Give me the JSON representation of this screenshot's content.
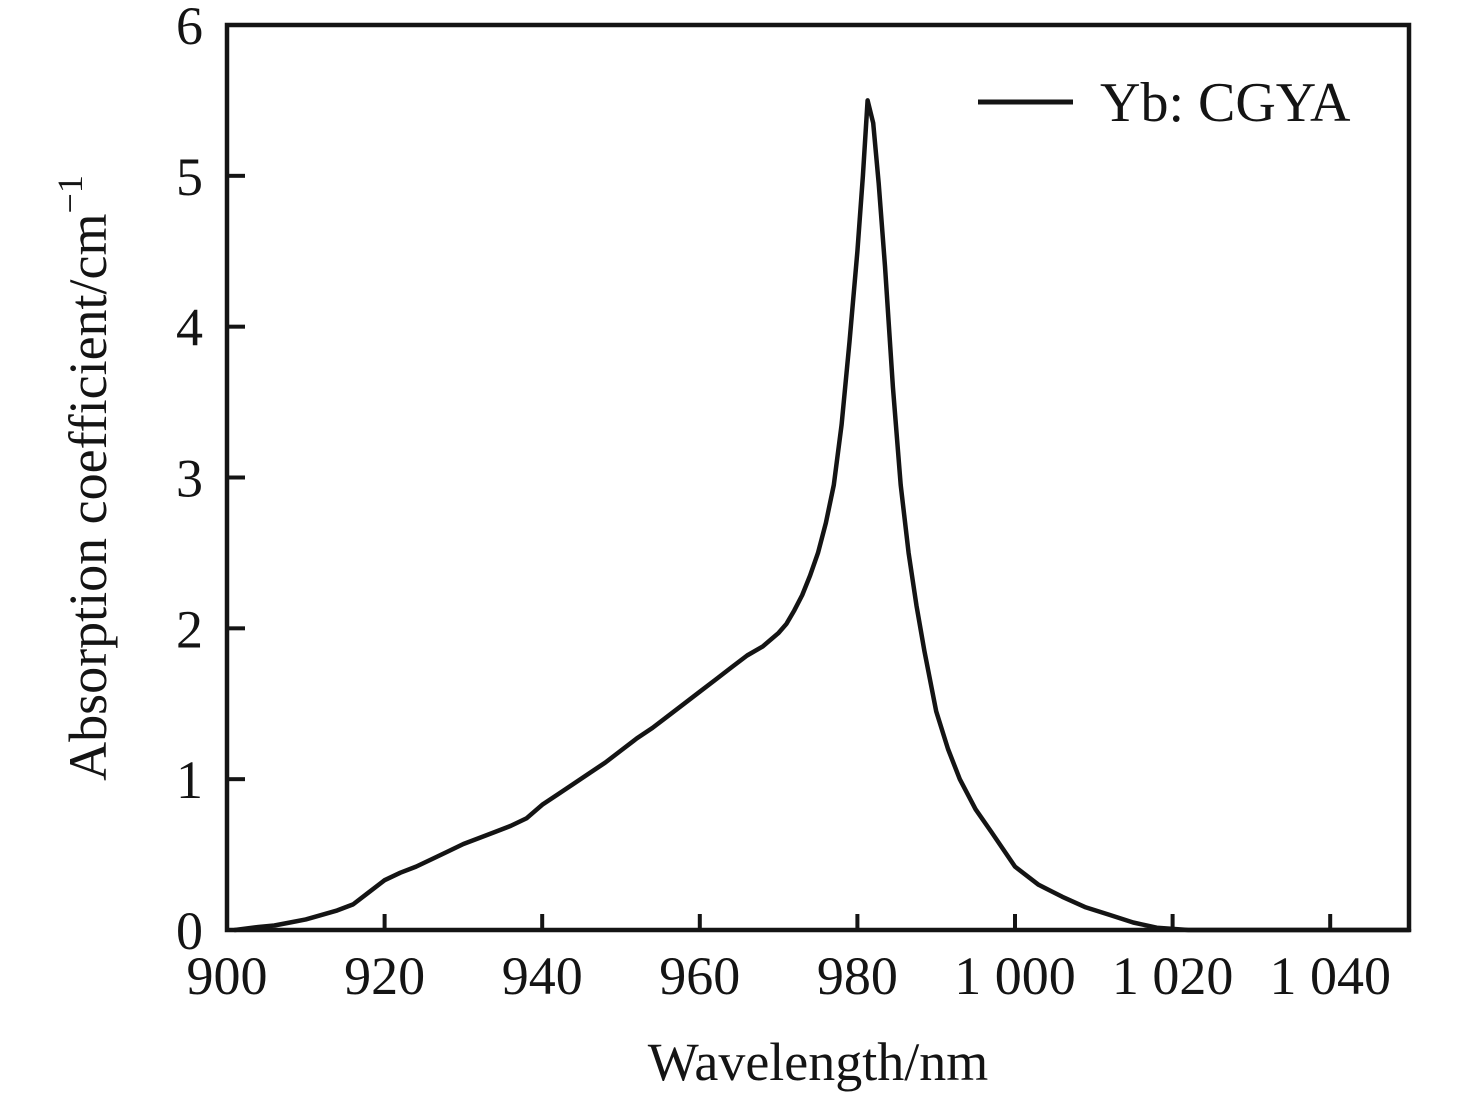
{
  "figure": {
    "background": "#ffffff",
    "ink_color": "#141414"
  },
  "chart_data": {
    "type": "line",
    "title": "",
    "xlabel": "Wavelength/nm",
    "ylabel_main": "Absorption coefficient/cm",
    "ylabel_sup": "−1",
    "legend": [
      {
        "label": "Yb: CGYA",
        "line_color": "#141414"
      }
    ],
    "legend_position": "top-right",
    "grid": false,
    "xlim": [
      900,
      1050
    ],
    "ylim": [
      0,
      6
    ],
    "xticks": [
      900,
      920,
      940,
      960,
      980,
      1000,
      1020,
      1040
    ],
    "xtick_labels": [
      "900",
      "920",
      "940",
      "960",
      "980",
      "1 000",
      "1 020",
      "1 040"
    ],
    "yticks": [
      0,
      1,
      2,
      3,
      4,
      5,
      6
    ],
    "ytick_labels": [
      "0",
      "1",
      "2",
      "3",
      "4",
      "5",
      "6"
    ],
    "peak": {
      "x": 981.3,
      "y": 5.5
    },
    "series": [
      {
        "name": "Yb: CGYA",
        "color": "#141414",
        "x": [
          901,
          904,
          906,
          908,
          910,
          912,
          914,
          916,
          918,
          920,
          922,
          924,
          926,
          928,
          930,
          932,
          934,
          936,
          938,
          940,
          942,
          944,
          946,
          948,
          950,
          952,
          954,
          956,
          958,
          960,
          962,
          964,
          966,
          968,
          970,
          971,
          972,
          973,
          974,
          975,
          976,
          977,
          978,
          979,
          980,
          980.7,
          981.3,
          982,
          982.7,
          983.5,
          984.5,
          985.5,
          986.5,
          987.5,
          988.5,
          990,
          991.5,
          993,
          995,
          997,
          1000,
          1003,
          1006,
          1009,
          1012,
          1015,
          1018,
          1022,
          1030,
          1040,
          1050
        ],
        "y": [
          0,
          0.02,
          0.03,
          0.05,
          0.07,
          0.1,
          0.13,
          0.17,
          0.25,
          0.33,
          0.38,
          0.42,
          0.47,
          0.52,
          0.57,
          0.61,
          0.65,
          0.69,
          0.74,
          0.83,
          0.9,
          0.97,
          1.04,
          1.11,
          1.19,
          1.27,
          1.34,
          1.42,
          1.5,
          1.58,
          1.66,
          1.74,
          1.82,
          1.88,
          1.97,
          2.03,
          2.12,
          2.22,
          2.35,
          2.5,
          2.7,
          2.95,
          3.35,
          3.9,
          4.5,
          5.0,
          5.5,
          5.35,
          4.95,
          4.4,
          3.6,
          2.95,
          2.5,
          2.15,
          1.85,
          1.45,
          1.2,
          1.0,
          0.8,
          0.65,
          0.42,
          0.3,
          0.22,
          0.15,
          0.1,
          0.05,
          0.015,
          0,
          0,
          0,
          0
        ]
      }
    ]
  }
}
